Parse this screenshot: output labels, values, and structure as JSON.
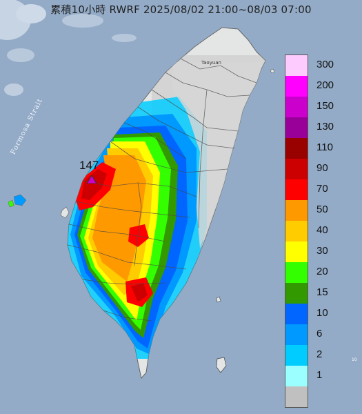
{
  "title": "累積10小時 RWRF 2025/08/02 21:00~08/03 07:00",
  "labels": {
    "strait": "Formosa Strait",
    "city": "Taoyuan",
    "max_value": "147",
    "small_edge": "10"
  },
  "legend": {
    "items": [
      {
        "label": "300",
        "color": "#fecbfe"
      },
      {
        "label": "200",
        "color": "#ff00ff"
      },
      {
        "label": "150",
        "color": "#cc00cc"
      },
      {
        "label": "130",
        "color": "#990099"
      },
      {
        "label": "110",
        "color": "#990000"
      },
      {
        "label": "90",
        "color": "#cc0000"
      },
      {
        "label": "70",
        "color": "#ff0000"
      },
      {
        "label": "50",
        "color": "#ff9900"
      },
      {
        "label": "40",
        "color": "#ffcc00"
      },
      {
        "label": "30",
        "color": "#ffff00"
      },
      {
        "label": "20",
        "color": "#33ff00"
      },
      {
        "label": "15",
        "color": "#339900"
      },
      {
        "label": "10",
        "color": "#0066ff"
      },
      {
        "label": "6",
        "color": "#0099ff"
      },
      {
        "label": "2",
        "color": "#00ccff"
      },
      {
        "label": "1",
        "color": "#9bffff"
      },
      {
        "label": "",
        "color": "#c0c0c0"
      }
    ]
  },
  "colors": {
    "sea": "#93abc7",
    "land": "#e3e6e4"
  }
}
